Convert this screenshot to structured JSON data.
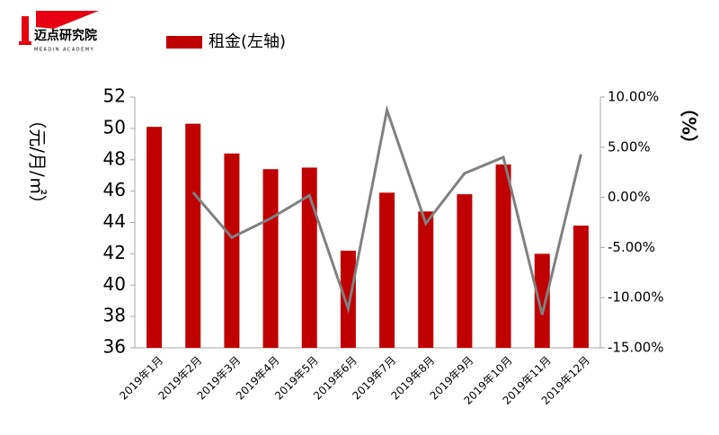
{
  "logo": {
    "name": "迈点研究院",
    "tagline": "MEADIN ACADEMY"
  },
  "chart_data": {
    "type": "bar-line",
    "y_label": "（元/月/㎡）",
    "y2_label": "（%）",
    "categories": [
      "2019年1月",
      "2019年2月",
      "2019年3月",
      "2019年4月",
      "2019年5月",
      "2019年6月",
      "2019年7月",
      "2019年8月",
      "2019年9月",
      "2019年10月",
      "2019年11月",
      "2019年12月"
    ],
    "series": [
      {
        "name": "租金(左轴)",
        "type": "bar",
        "color": "#c00000",
        "values": [
          50.1,
          50.3,
          48.4,
          47.4,
          47.5,
          42.2,
          45.9,
          44.7,
          45.8,
          47.7,
          42.0,
          43.8
        ]
      },
      {
        "type": "line",
        "axis": "y2",
        "color": "#808080",
        "values": [
          null,
          0.5,
          -4.0,
          -2.1,
          0.2,
          -11.1,
          8.7,
          -2.6,
          2.4,
          4.0,
          -11.7,
          4.3
        ]
      }
    ],
    "ylim": [
      36,
      52
    ],
    "yticks": [
      36,
      38,
      40,
      42,
      44,
      46,
      48,
      50,
      52
    ],
    "y2lim": [
      -15,
      10
    ],
    "y2ticks": [
      {
        "value": -15,
        "label": "-15.00%"
      },
      {
        "value": -10,
        "label": "-10.00%"
      },
      {
        "value": -5,
        "label": "-5.00%"
      },
      {
        "value": 0,
        "label": "0.00%"
      },
      {
        "value": 5,
        "label": "5.00%"
      },
      {
        "value": 10,
        "label": "10.00%"
      }
    ]
  }
}
